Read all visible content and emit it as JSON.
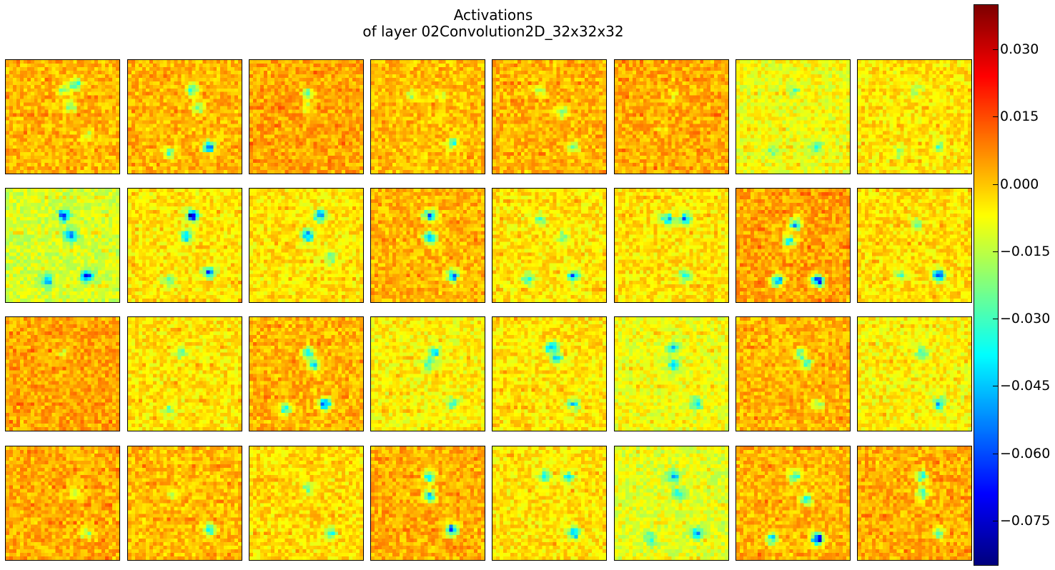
{
  "chart_data": {
    "type": "heatmap",
    "title_lines": [
      "Activations",
      "of layer 02Convolution2D_32x32x32"
    ],
    "grid": {
      "rows": 4,
      "cols": 8
    },
    "feature_map_size": [
      32,
      32
    ],
    "colormap": "jet",
    "colorbar": {
      "vmin": -0.085,
      "vmax": 0.04,
      "ticks": [
        0.03,
        0.015,
        0.0,
        -0.015,
        -0.03,
        -0.045,
        -0.06,
        -0.075
      ],
      "tick_labels": [
        "0.030",
        "0.015",
        "0.000",
        "−0.015",
        "−0.030",
        "−0.045",
        "−0.060",
        "−0.075"
      ]
    },
    "panels": [
      {
        "hotspots": [
          [
            0.5,
            0.25,
            -0.03
          ],
          [
            0.6,
            0.2,
            -0.05
          ],
          [
            0.55,
            0.4,
            -0.03
          ],
          [
            0.7,
            0.65,
            -0.02
          ]
        ],
        "bg": 0.002
      },
      {
        "hotspots": [
          [
            0.55,
            0.25,
            -0.04
          ],
          [
            0.6,
            0.4,
            -0.03
          ],
          [
            0.35,
            0.8,
            -0.03
          ],
          [
            0.7,
            0.75,
            -0.07
          ]
        ],
        "bg": 0.002
      },
      {
        "hotspots": [
          [
            0.5,
            0.28,
            -0.03
          ],
          [
            0.5,
            0.4,
            -0.02
          ]
        ],
        "bg": 0.004
      },
      {
        "hotspots": [
          [
            0.35,
            0.3,
            -0.02
          ],
          [
            0.6,
            0.3,
            -0.02
          ],
          [
            0.7,
            0.72,
            -0.04
          ]
        ],
        "bg": 0.001
      },
      {
        "hotspots": [
          [
            0.4,
            0.25,
            -0.02
          ],
          [
            0.6,
            0.45,
            -0.03
          ],
          [
            0.7,
            0.75,
            -0.03
          ]
        ],
        "bg": 0.002
      },
      {
        "hotspots": [
          [
            0.5,
            0.3,
            -0.015
          ],
          [
            0.4,
            0.6,
            -0.01
          ]
        ],
        "bg": 0.003
      },
      {
        "hotspots": [
          [
            0.5,
            0.25,
            -0.015
          ],
          [
            0.7,
            0.75,
            -0.035
          ],
          [
            0.3,
            0.78,
            -0.02
          ]
        ],
        "bg": -0.008
      },
      {
        "hotspots": [
          [
            0.5,
            0.25,
            -0.02
          ],
          [
            0.7,
            0.75,
            -0.03
          ],
          [
            0.35,
            0.8,
            -0.02
          ]
        ],
        "bg": -0.004
      },
      {
        "hotspots": [
          [
            0.5,
            0.22,
            -0.06
          ],
          [
            0.55,
            0.4,
            -0.05
          ],
          [
            0.35,
            0.8,
            -0.04
          ],
          [
            0.7,
            0.75,
            -0.065
          ]
        ],
        "bg": -0.012
      },
      {
        "hotspots": [
          [
            0.55,
            0.22,
            -0.075
          ],
          [
            0.5,
            0.4,
            -0.05
          ],
          [
            0.7,
            0.72,
            -0.06
          ],
          [
            0.35,
            0.8,
            -0.03
          ]
        ],
        "bg": -0.004
      },
      {
        "hotspots": [
          [
            0.6,
            0.22,
            -0.06
          ],
          [
            0.5,
            0.4,
            -0.055
          ],
          [
            0.7,
            0.6,
            -0.03
          ]
        ],
        "bg": -0.004
      },
      {
        "hotspots": [
          [
            0.5,
            0.22,
            -0.07
          ],
          [
            0.5,
            0.42,
            -0.065
          ],
          [
            0.7,
            0.75,
            -0.07
          ]
        ],
        "bg": 0.002
      },
      {
        "hotspots": [
          [
            0.4,
            0.25,
            -0.03
          ],
          [
            0.6,
            0.42,
            -0.03
          ],
          [
            0.7,
            0.75,
            -0.05
          ],
          [
            0.3,
            0.78,
            -0.03
          ]
        ],
        "bg": -0.004
      },
      {
        "hotspots": [
          [
            0.45,
            0.25,
            -0.05
          ],
          [
            0.6,
            0.25,
            -0.05
          ],
          [
            0.6,
            0.75,
            -0.04
          ]
        ],
        "bg": -0.004
      },
      {
        "hotspots": [
          [
            0.5,
            0.3,
            -0.06
          ],
          [
            0.45,
            0.45,
            -0.05
          ],
          [
            0.35,
            0.8,
            -0.065
          ],
          [
            0.7,
            0.8,
            -0.075
          ]
        ],
        "bg": 0.004
      },
      {
        "hotspots": [
          [
            0.5,
            0.3,
            -0.03
          ],
          [
            0.35,
            0.75,
            -0.03
          ],
          [
            0.7,
            0.75,
            -0.07
          ]
        ],
        "bg": -0.003
      },
      {
        "hotspots": [
          [
            0.5,
            0.3,
            -0.015
          ]
        ],
        "bg": 0.004
      },
      {
        "hotspots": [
          [
            0.45,
            0.3,
            -0.025
          ],
          [
            0.35,
            0.8,
            -0.02
          ]
        ],
        "bg": -0.004
      },
      {
        "hotspots": [
          [
            0.5,
            0.3,
            -0.04
          ],
          [
            0.55,
            0.4,
            -0.05
          ],
          [
            0.3,
            0.8,
            -0.04
          ],
          [
            0.65,
            0.75,
            -0.07
          ]
        ],
        "bg": 0.002
      },
      {
        "hotspots": [
          [
            0.55,
            0.3,
            -0.035
          ],
          [
            0.5,
            0.4,
            -0.03
          ],
          [
            0.7,
            0.75,
            -0.03
          ]
        ],
        "bg": -0.006
      },
      {
        "hotspots": [
          [
            0.5,
            0.25,
            -0.05
          ],
          [
            0.55,
            0.35,
            -0.04
          ],
          [
            0.7,
            0.75,
            -0.04
          ]
        ],
        "bg": -0.004
      },
      {
        "hotspots": [
          [
            0.5,
            0.25,
            -0.04
          ],
          [
            0.5,
            0.4,
            -0.04
          ],
          [
            0.7,
            0.75,
            -0.04
          ]
        ],
        "bg": -0.008
      },
      {
        "hotspots": [
          [
            0.55,
            0.3,
            -0.04
          ],
          [
            0.6,
            0.4,
            -0.04
          ],
          [
            0.7,
            0.75,
            -0.03
          ]
        ],
        "bg": 0.002
      },
      {
        "hotspots": [
          [
            0.55,
            0.3,
            -0.03
          ],
          [
            0.7,
            0.75,
            -0.04
          ]
        ],
        "bg": -0.006
      },
      {
        "hotspots": [
          [
            0.6,
            0.4,
            -0.02
          ],
          [
            0.7,
            0.75,
            -0.03
          ]
        ],
        "bg": 0.003
      },
      {
        "hotspots": [
          [
            0.4,
            0.4,
            -0.02
          ],
          [
            0.7,
            0.72,
            -0.05
          ]
        ],
        "bg": 0.001
      },
      {
        "hotspots": [
          [
            0.5,
            0.35,
            -0.02
          ],
          [
            0.7,
            0.75,
            -0.03
          ]
        ],
        "bg": -0.003
      },
      {
        "hotspots": [
          [
            0.5,
            0.25,
            -0.05
          ],
          [
            0.5,
            0.42,
            -0.055
          ],
          [
            0.7,
            0.72,
            -0.07
          ]
        ],
        "bg": 0.003
      },
      {
        "hotspots": [
          [
            0.45,
            0.25,
            -0.04
          ],
          [
            0.65,
            0.25,
            -0.03
          ],
          [
            0.7,
            0.75,
            -0.05
          ]
        ],
        "bg": -0.004
      },
      {
        "hotspots": [
          [
            0.5,
            0.25,
            -0.04
          ],
          [
            0.55,
            0.4,
            -0.035
          ],
          [
            0.7,
            0.75,
            -0.05
          ],
          [
            0.3,
            0.8,
            -0.03
          ]
        ],
        "bg": -0.01
      },
      {
        "hotspots": [
          [
            0.5,
            0.25,
            -0.04
          ],
          [
            0.6,
            0.45,
            -0.04
          ],
          [
            0.3,
            0.8,
            -0.05
          ],
          [
            0.7,
            0.8,
            -0.085
          ]
        ],
        "bg": 0.002
      },
      {
        "hotspots": [
          [
            0.55,
            0.25,
            -0.05
          ],
          [
            0.55,
            0.4,
            -0.04
          ],
          [
            0.7,
            0.75,
            -0.035
          ]
        ],
        "bg": 0.003
      }
    ]
  }
}
